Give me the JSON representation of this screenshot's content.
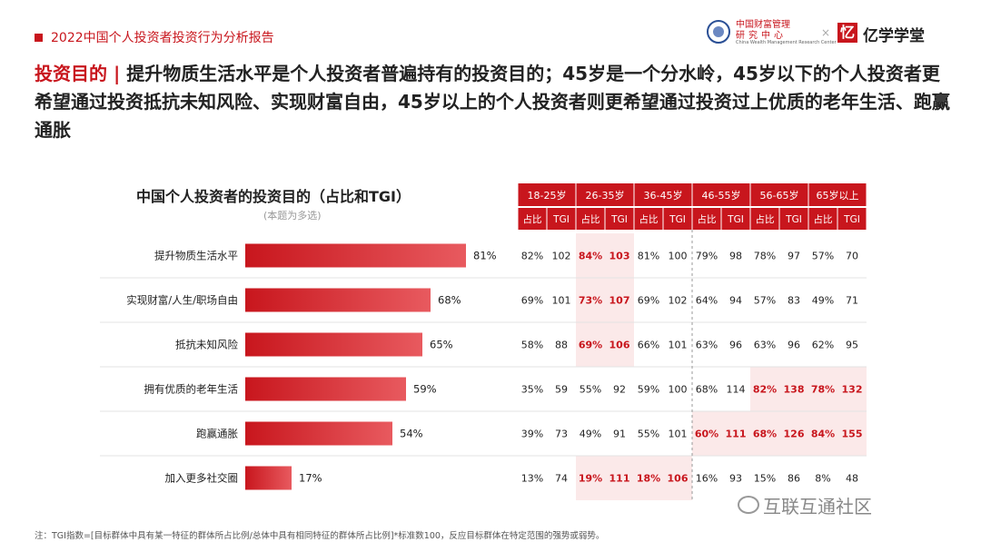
{
  "header": {
    "report_title": "2022中国个人投资者投资行为分析报告",
    "logo1_line1": "中国财富管理",
    "logo1_line2": "研究中心",
    "logo1_sub": "China Wealth Management Research Center",
    "logo_separator": "×",
    "logo2_mark": "忆",
    "logo2_text": "亿学学堂"
  },
  "headline": {
    "key": "投资目的",
    "separator": "|",
    "text": "提升物质生活水平是个人投资者普遍持有的投资目的；45岁是一个分水岭，45岁以下的个人投资者更希望通过投资抵抗未知风险、实现财富自由，45岁以上的个人投资者则更希望通过投资过上优质的老年生活、跑赢通胀"
  },
  "chart_title": "中国个人投资者的投资目的（占比和TGI）",
  "chart_subtitle": "(本题为多选)",
  "colors": {
    "accent": "#c8161d",
    "highlight_bg": "#fbe9e9",
    "bar_dark": "#c8161d",
    "bar_light": "#e85a5f"
  },
  "chart_data": {
    "type": "bar",
    "orientation": "horizontal",
    "categories": [
      "提升物质生活水平",
      "实现财富/人生/职场自由",
      "抵抗未知风险",
      "拥有优质的老年生活",
      "跑赢通胀",
      "加入更多社交圈"
    ],
    "values": [
      81,
      68,
      65,
      59,
      54,
      17
    ],
    "value_labels": [
      "81%",
      "68%",
      "65%",
      "59%",
      "54%",
      "17%"
    ],
    "xlim": [
      0,
      100
    ],
    "table": {
      "age_groups": [
        "18-25岁",
        "26-35岁",
        "36-45岁",
        "46-55岁",
        "56-65岁",
        "65岁以上"
      ],
      "sub_headers": [
        "占比",
        "TGI"
      ],
      "rows": [
        [
          [
            "82%",
            "102"
          ],
          [
            "84%",
            "103"
          ],
          [
            "81%",
            "100"
          ],
          [
            "79%",
            "98"
          ],
          [
            "78%",
            "97"
          ],
          [
            "57%",
            "70"
          ]
        ],
        [
          [
            "69%",
            "101"
          ],
          [
            "73%",
            "107"
          ],
          [
            "69%",
            "102"
          ],
          [
            "64%",
            "94"
          ],
          [
            "57%",
            "83"
          ],
          [
            "49%",
            "71"
          ]
        ],
        [
          [
            "58%",
            "88"
          ],
          [
            "69%",
            "106"
          ],
          [
            "66%",
            "101"
          ],
          [
            "63%",
            "96"
          ],
          [
            "63%",
            "96"
          ],
          [
            "62%",
            "95"
          ]
        ],
        [
          [
            "35%",
            "59"
          ],
          [
            "55%",
            "92"
          ],
          [
            "59%",
            "100"
          ],
          [
            "68%",
            "114"
          ],
          [
            "82%",
            "138"
          ],
          [
            "78%",
            "132"
          ]
        ],
        [
          [
            "39%",
            "73"
          ],
          [
            "49%",
            "91"
          ],
          [
            "55%",
            "101"
          ],
          [
            "60%",
            "111"
          ],
          [
            "68%",
            "126"
          ],
          [
            "84%",
            "155"
          ]
        ],
        [
          [
            "13%",
            "74"
          ],
          [
            "19%",
            "111"
          ],
          [
            "18%",
            "106"
          ],
          [
            "16%",
            "93"
          ],
          [
            "15%",
            "86"
          ],
          [
            "8%",
            "48"
          ]
        ]
      ],
      "highlighted": [
        [
          false,
          true,
          false,
          false,
          false,
          false
        ],
        [
          false,
          true,
          false,
          false,
          false,
          false
        ],
        [
          false,
          true,
          false,
          false,
          false,
          false
        ],
        [
          false,
          false,
          false,
          false,
          true,
          true
        ],
        [
          false,
          false,
          false,
          true,
          true,
          true
        ],
        [
          false,
          true,
          true,
          false,
          false,
          false
        ]
      ]
    }
  },
  "footnote": "注：TGI指数=[目标群体中具有某一特征的群体所占比例/总体中具有相同特征的群体所占比例]*标准数100，反应目标群体在特定范围的强势或弱势。",
  "watermark": "互联互通社区"
}
